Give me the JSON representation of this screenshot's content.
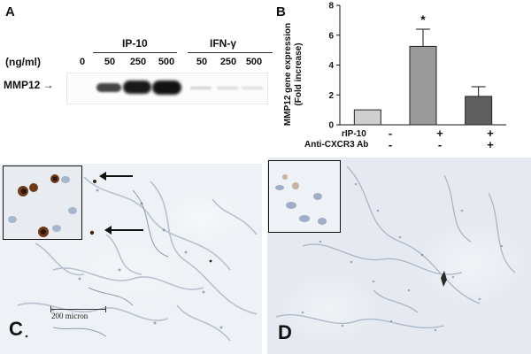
{
  "panel_a": {
    "letter": "A",
    "units_label": "(ng/ml)",
    "group1_label": "IP-10",
    "group2_label": "IFN-γ",
    "doses": [
      "0",
      "50",
      "250",
      "500",
      "50",
      "250",
      "500"
    ],
    "row_label": "MMP12 →"
  },
  "panel_b": {
    "letter": "B",
    "ylabel_line1": "MMP12 gene expression",
    "ylabel_line2": "(Fold increase)",
    "row1_label": "rIP-10",
    "row2_label": "Anti-CXCR3 Ab",
    "row1_values": [
      "-",
      "+",
      "+"
    ],
    "row2_values": [
      "-",
      "-",
      "+"
    ],
    "significance": "*"
  },
  "chart_data": {
    "type": "bar",
    "categories": [
      "",
      "",
      ""
    ],
    "values": [
      1.0,
      5.25,
      1.9
    ],
    "errors": [
      0.0,
      1.15,
      0.65
    ],
    "bar_colors": [
      "#cfcfcf",
      "#9a9a9a",
      "#5e5e5e"
    ],
    "ylim": [
      0,
      8
    ],
    "yticks": [
      0,
      2,
      4,
      6,
      8
    ],
    "xlabel": "",
    "ylabel": "MMP12 gene expression (Fold increase)",
    "annotation": "*"
  },
  "panel_c": {
    "letter": "C",
    "scale_label": "200 micron"
  },
  "panel_d": {
    "letter": "D"
  }
}
